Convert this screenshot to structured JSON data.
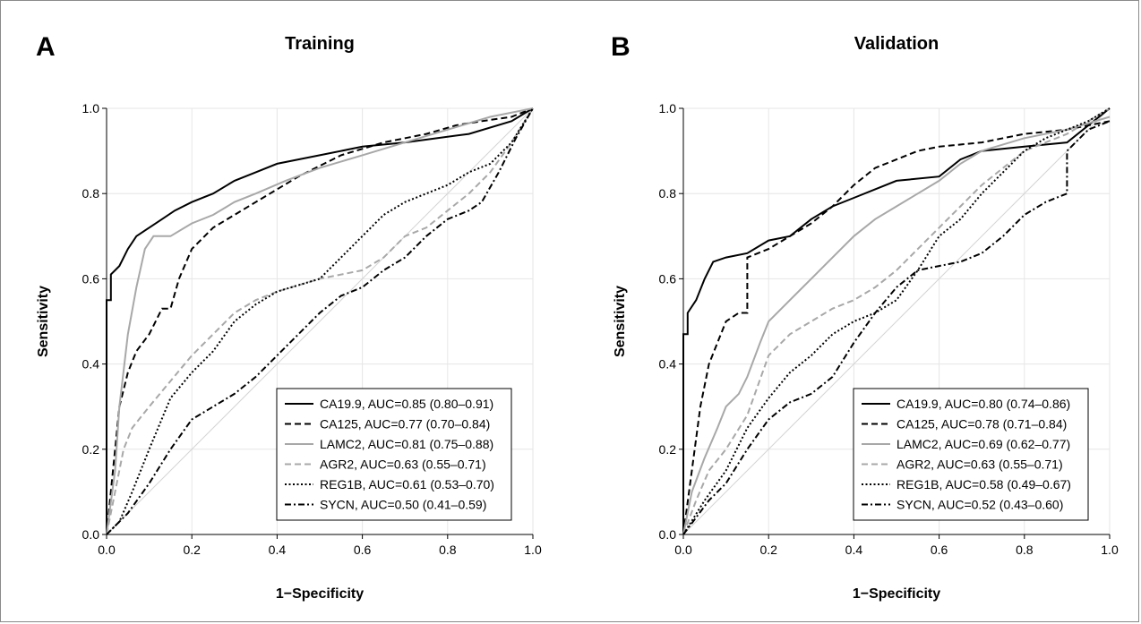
{
  "chart_data": [
    {
      "type": "line",
      "panel_label": "A",
      "title": "Training",
      "xlabel": "1−Specificity",
      "ylabel": "Sensitivity",
      "xlim": [
        0,
        1
      ],
      "ylim": [
        0,
        1
      ],
      "x_ticks": [
        "0.0",
        "0.2",
        "0.4",
        "0.6",
        "0.8",
        "1.0"
      ],
      "y_ticks": [
        "0.0",
        "0.2",
        "0.4",
        "0.6",
        "0.8",
        "1.0"
      ],
      "grid": true,
      "legend_position": "bottom-right",
      "series": [
        {
          "name": "CA19.9, AUC=0.85 (0.80–0.91)",
          "color": "#000000",
          "dash": "solid",
          "x": [
            0,
            0,
            0.01,
            0.01,
            0.03,
            0.05,
            0.07,
            0.1,
            0.13,
            0.16,
            0.2,
            0.25,
            0.3,
            0.35,
            0.4,
            0.5,
            0.6,
            0.7,
            0.85,
            0.95,
            1.0
          ],
          "y": [
            0,
            0.55,
            0.55,
            0.61,
            0.63,
            0.67,
            0.7,
            0.72,
            0.74,
            0.76,
            0.78,
            0.8,
            0.83,
            0.85,
            0.87,
            0.89,
            0.91,
            0.92,
            0.94,
            0.97,
            1.0
          ]
        },
        {
          "name": "CA125, AUC=0.77 (0.70–0.84)",
          "color": "#000000",
          "dash": "dashed",
          "x": [
            0,
            0.02,
            0.03,
            0.05,
            0.07,
            0.1,
            0.13,
            0.15,
            0.17,
            0.2,
            0.25,
            0.3,
            0.35,
            0.45,
            0.55,
            0.65,
            0.75,
            0.82,
            0.88,
            0.95,
            1.0
          ],
          "y": [
            0,
            0.2,
            0.3,
            0.38,
            0.43,
            0.47,
            0.53,
            0.53,
            0.6,
            0.67,
            0.72,
            0.75,
            0.78,
            0.84,
            0.89,
            0.92,
            0.94,
            0.96,
            0.97,
            0.98,
            1.0
          ]
        },
        {
          "name": "LAMC2, AUC=0.81 (0.75–0.88)",
          "color": "#a8a8a8",
          "dash": "solid",
          "x": [
            0,
            0.02,
            0.03,
            0.05,
            0.07,
            0.09,
            0.11,
            0.15,
            0.2,
            0.25,
            0.3,
            0.35,
            0.42,
            0.5,
            0.6,
            0.7,
            0.8,
            0.9,
            1.0
          ],
          "y": [
            0,
            0.15,
            0.3,
            0.47,
            0.58,
            0.67,
            0.7,
            0.7,
            0.73,
            0.75,
            0.78,
            0.8,
            0.83,
            0.86,
            0.89,
            0.92,
            0.95,
            0.98,
            1.0
          ]
        },
        {
          "name": "AGR2, AUC=0.63 (0.55–0.71)",
          "color": "#a8a8a8",
          "dash": "dashed",
          "x": [
            0,
            0.02,
            0.04,
            0.06,
            0.1,
            0.15,
            0.2,
            0.25,
            0.3,
            0.35,
            0.4,
            0.5,
            0.6,
            0.65,
            0.7,
            0.75,
            0.8,
            0.85,
            0.9,
            0.95,
            1.0
          ],
          "y": [
            0,
            0.1,
            0.2,
            0.25,
            0.3,
            0.36,
            0.42,
            0.47,
            0.52,
            0.55,
            0.57,
            0.6,
            0.62,
            0.65,
            0.7,
            0.72,
            0.76,
            0.8,
            0.85,
            0.92,
            1.0
          ]
        },
        {
          "name": "REG1B, AUC=0.61 (0.53–0.70)",
          "color": "#000000",
          "dash": "dotted",
          "x": [
            0,
            0.03,
            0.06,
            0.1,
            0.15,
            0.2,
            0.25,
            0.3,
            0.35,
            0.4,
            0.5,
            0.55,
            0.6,
            0.65,
            0.7,
            0.75,
            0.8,
            0.85,
            0.9,
            0.95,
            1.0
          ],
          "y": [
            0,
            0.03,
            0.1,
            0.2,
            0.32,
            0.38,
            0.43,
            0.5,
            0.54,
            0.57,
            0.6,
            0.65,
            0.7,
            0.75,
            0.78,
            0.8,
            0.82,
            0.85,
            0.87,
            0.92,
            1.0
          ]
        },
        {
          "name": "SYCN, AUC=0.50 (0.41–0.59)",
          "color": "#000000",
          "dash": "dashdot",
          "x": [
            0,
            0.05,
            0.1,
            0.15,
            0.2,
            0.25,
            0.3,
            0.35,
            0.4,
            0.45,
            0.5,
            0.55,
            0.6,
            0.65,
            0.7,
            0.75,
            0.8,
            0.85,
            0.88,
            0.92,
            0.96,
            1.0
          ],
          "y": [
            0,
            0.05,
            0.12,
            0.2,
            0.27,
            0.3,
            0.33,
            0.37,
            0.42,
            0.47,
            0.52,
            0.56,
            0.58,
            0.62,
            0.65,
            0.7,
            0.74,
            0.76,
            0.78,
            0.85,
            0.93,
            1.0
          ]
        }
      ]
    },
    {
      "type": "line",
      "panel_label": "B",
      "title": "Validation",
      "xlabel": "1−Specificity",
      "ylabel": "Sensitivity",
      "xlim": [
        0,
        1
      ],
      "ylim": [
        0,
        1
      ],
      "x_ticks": [
        "0.0",
        "0.2",
        "0.4",
        "0.6",
        "0.8",
        "1.0"
      ],
      "y_ticks": [
        "0.0",
        "0.2",
        "0.4",
        "0.6",
        "0.8",
        "1.0"
      ],
      "grid": true,
      "legend_position": "bottom-right",
      "series": [
        {
          "name": "CA19.9, AUC=0.80 (0.74–0.86)",
          "color": "#000000",
          "dash": "solid",
          "x": [
            0,
            0,
            0.01,
            0.01,
            0.03,
            0.05,
            0.07,
            0.1,
            0.15,
            0.2,
            0.25,
            0.3,
            0.35,
            0.4,
            0.45,
            0.5,
            0.6,
            0.65,
            0.7,
            0.8,
            0.9,
            1.0
          ],
          "y": [
            0,
            0.47,
            0.47,
            0.52,
            0.55,
            0.6,
            0.64,
            0.65,
            0.66,
            0.69,
            0.7,
            0.74,
            0.77,
            0.79,
            0.81,
            0.83,
            0.84,
            0.88,
            0.9,
            0.91,
            0.92,
            1.0
          ]
        },
        {
          "name": "CA125, AUC=0.78 (0.71–0.84)",
          "color": "#000000",
          "dash": "dashed",
          "x": [
            0,
            0.02,
            0.04,
            0.06,
            0.08,
            0.1,
            0.13,
            0.15,
            0.15,
            0.2,
            0.25,
            0.3,
            0.35,
            0.4,
            0.45,
            0.5,
            0.55,
            0.6,
            0.7,
            0.8,
            0.9,
            1.0
          ],
          "y": [
            0,
            0.15,
            0.3,
            0.4,
            0.45,
            0.5,
            0.52,
            0.52,
            0.65,
            0.67,
            0.7,
            0.73,
            0.77,
            0.82,
            0.86,
            0.88,
            0.9,
            0.91,
            0.92,
            0.94,
            0.95,
            0.97
          ]
        },
        {
          "name": "LAMC2, AUC=0.69 (0.62–0.77)",
          "color": "#a8a8a8",
          "dash": "solid",
          "x": [
            0,
            0.02,
            0.05,
            0.08,
            0.1,
            0.13,
            0.15,
            0.18,
            0.2,
            0.25,
            0.3,
            0.35,
            0.4,
            0.45,
            0.5,
            0.55,
            0.6,
            0.65,
            0.7,
            0.8,
            0.9,
            1.0
          ],
          "y": [
            0,
            0.1,
            0.18,
            0.25,
            0.3,
            0.33,
            0.37,
            0.45,
            0.5,
            0.55,
            0.6,
            0.65,
            0.7,
            0.74,
            0.77,
            0.8,
            0.83,
            0.87,
            0.9,
            0.93,
            0.95,
            0.98
          ]
        },
        {
          "name": "AGR2, AUC=0.63 (0.55–0.71)",
          "color": "#a8a8a8",
          "dash": "dashed",
          "x": [
            0,
            0.03,
            0.06,
            0.1,
            0.15,
            0.2,
            0.25,
            0.3,
            0.35,
            0.4,
            0.45,
            0.5,
            0.55,
            0.6,
            0.65,
            0.7,
            0.75,
            0.8,
            0.9,
            1.0
          ],
          "y": [
            0,
            0.08,
            0.15,
            0.2,
            0.28,
            0.42,
            0.47,
            0.5,
            0.53,
            0.55,
            0.58,
            0.62,
            0.67,
            0.72,
            0.77,
            0.82,
            0.86,
            0.9,
            0.94,
            1.0
          ]
        },
        {
          "name": "REG1B, AUC=0.58 (0.49–0.67)",
          "color": "#000000",
          "dash": "dotted",
          "x": [
            0,
            0.05,
            0.1,
            0.15,
            0.2,
            0.25,
            0.3,
            0.35,
            0.4,
            0.45,
            0.5,
            0.55,
            0.6,
            0.65,
            0.7,
            0.75,
            0.8,
            0.85,
            0.9,
            0.95,
            1.0
          ],
          "y": [
            0,
            0.08,
            0.15,
            0.25,
            0.32,
            0.38,
            0.42,
            0.47,
            0.5,
            0.52,
            0.55,
            0.62,
            0.7,
            0.74,
            0.8,
            0.85,
            0.9,
            0.93,
            0.95,
            0.97,
            1.0
          ]
        },
        {
          "name": "SYCN, AUC=0.52 (0.43–0.60)",
          "color": "#000000",
          "dash": "dashdot",
          "x": [
            0,
            0.03,
            0.06,
            0.1,
            0.15,
            0.2,
            0.25,
            0.3,
            0.35,
            0.4,
            0.45,
            0.5,
            0.55,
            0.6,
            0.65,
            0.7,
            0.75,
            0.8,
            0.85,
            0.9,
            0.9,
            0.95,
            1.0
          ],
          "y": [
            0,
            0.04,
            0.08,
            0.12,
            0.2,
            0.27,
            0.31,
            0.33,
            0.37,
            0.45,
            0.52,
            0.58,
            0.62,
            0.63,
            0.64,
            0.66,
            0.7,
            0.75,
            0.78,
            0.8,
            0.9,
            0.95,
            0.97
          ]
        }
      ]
    }
  ]
}
